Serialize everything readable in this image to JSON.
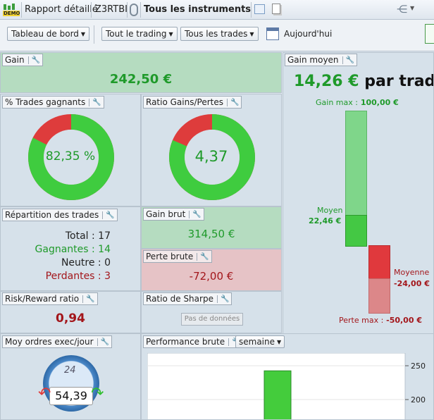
{
  "topbar": {
    "demo_badge": "DEMO",
    "report_label": "Rapport détaillé",
    "account": "Z3RTBI",
    "instruments": "Tous les instruments"
  },
  "toolbar": {
    "dashboard": "Tableau de bord",
    "trading": "Tout le trading",
    "trades": "Tous les trades",
    "date": "Aujourd'hui"
  },
  "gain": {
    "title": "Gain",
    "value": "242,50 €"
  },
  "gain_moyen": {
    "title": "Gain moyen",
    "value": "14,26 €",
    "suffix": "par trad",
    "gain_max_label": "Gain max :",
    "gain_max_value": "100,00 €",
    "moyen_label": "Moyen",
    "moyen_value": "22,46 €",
    "moyenne_label": "Moyenne",
    "moyenne_value": "-24,00 €",
    "perte_max_label": "Perte max :",
    "perte_max_value": "-50,00 €",
    "gain_max_num": 100,
    "gain_moyen_num": 22.46,
    "perte_moyenne_num": -24,
    "perte_max_num": -50
  },
  "win_pct": {
    "title": "% Trades gagnants",
    "value": "82,35 %",
    "fraction": 0.8235
  },
  "ratio": {
    "title": "Ratio Gains/Pertes",
    "value": "4,37",
    "fraction": 0.8138
  },
  "repartition": {
    "title": "Répartition des trades",
    "total": "Total : 17",
    "gagnantes": "Gagnantes : 14",
    "neutre": "Neutre : 0",
    "perdantes": "Perdantes : 3"
  },
  "gain_brut": {
    "title": "Gain brut",
    "value": "314,50 €"
  },
  "perte_brute": {
    "title": "Perte brute",
    "value": "-72,00 €"
  },
  "risk": {
    "title": "Risk/Reward ratio",
    "value": "0,94"
  },
  "sharpe": {
    "title": "Ratio de Sharpe",
    "no_data": "Pas de données"
  },
  "moy_ordres": {
    "title": "Moy ordres exec/jour",
    "value": "54,39",
    "clock": "24"
  },
  "perf": {
    "title": "Performance brute",
    "period": "semaine"
  },
  "chart_data": {
    "type": "bar",
    "categories": [
      ""
    ],
    "values": [
      242.5
    ],
    "ylim": [
      170,
      260
    ],
    "yticks": [
      "250",
      "200"
    ]
  },
  "colors": {
    "green": "#1f9a2a",
    "red": "#a3161b",
    "donut_green": "#3fcc3f",
    "donut_red": "#de3c3c"
  }
}
